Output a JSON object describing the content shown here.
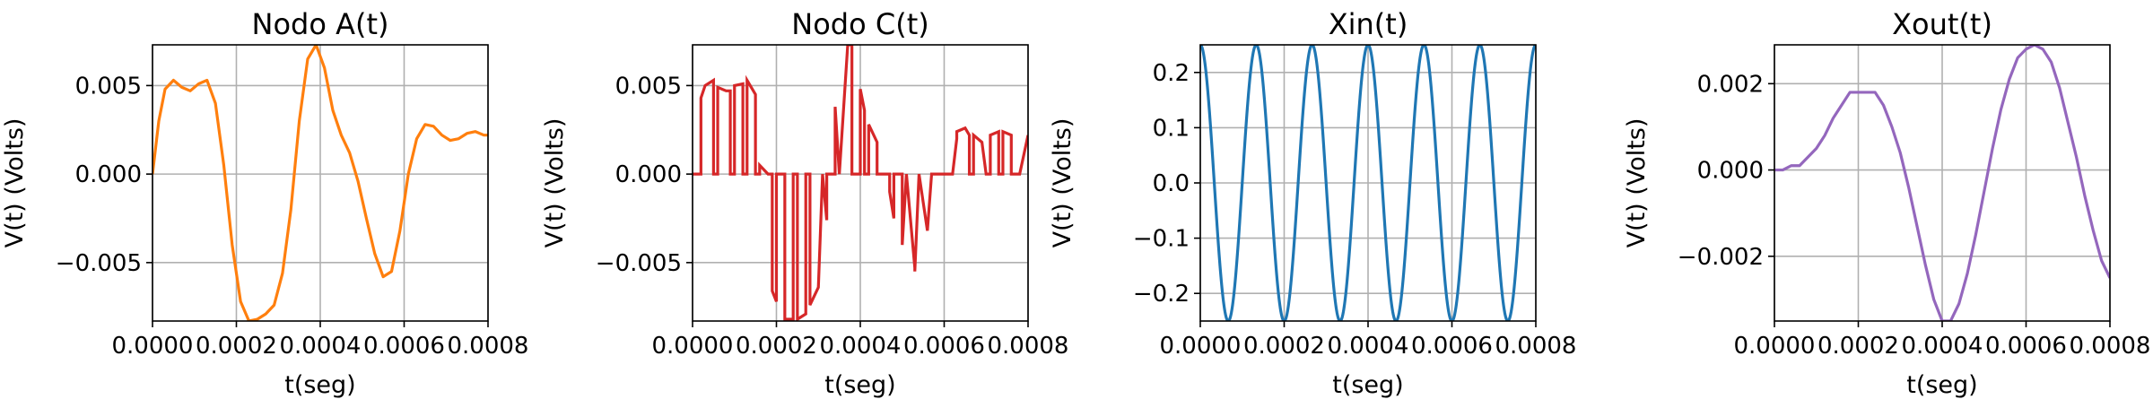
{
  "chart_data": [
    {
      "type": "line",
      "title": "Nodo A(t)",
      "xlabel": "t(seg)",
      "ylabel": "V(t) (Volts)",
      "xlim": [
        0,
        0.0008
      ],
      "ylim": [
        -0.0083,
        0.0073
      ],
      "xticks": [
        "0.0000",
        "0.0002",
        "0.0004",
        "0.0006",
        "0.0008"
      ],
      "yticks": [
        "0.005",
        "0.000",
        "−0.005"
      ],
      "ytick_values": [
        0.005,
        0,
        -0.005
      ],
      "xtick_values": [
        0,
        0.0002,
        0.0004,
        0.0006,
        0.0008
      ],
      "grid": true,
      "color": "#ff7f0e",
      "series": [
        {
          "x": [
            0,
            1.5e-05,
            3e-05,
            5e-05,
            7e-05,
            9e-05,
            0.00011,
            0.00013,
            0.00015,
            0.00017,
            0.00019,
            0.00021,
            0.00023,
            0.00025,
            0.00027,
            0.00029,
            0.00031,
            0.00033,
            0.00035,
            0.00037,
            0.00039,
            0.00041,
            0.00043,
            0.00045,
            0.00047,
            0.00049,
            0.00051,
            0.00053,
            0.00055,
            0.00057,
            0.00059,
            0.00061,
            0.00063,
            0.00065,
            0.00067,
            0.00069,
            0.00071,
            0.00073,
            0.00075,
            0.00077,
            0.00079,
            0.0008
          ],
          "y": [
            0.0,
            0.003,
            0.0048,
            0.0053,
            0.0049,
            0.0047,
            0.0051,
            0.0053,
            0.004,
            0.0005,
            -0.004,
            -0.0072,
            -0.0083,
            -0.0082,
            -0.0079,
            -0.0074,
            -0.0056,
            -0.002,
            0.003,
            0.0065,
            0.0073,
            0.006,
            0.0036,
            0.0022,
            0.0012,
            -0.0004,
            -0.0025,
            -0.0045,
            -0.0058,
            -0.0055,
            -0.0032,
            0.0,
            0.002,
            0.0028,
            0.0027,
            0.0022,
            0.0019,
            0.002,
            0.0023,
            0.0024,
            0.0022,
            0.0022
          ]
        }
      ]
    },
    {
      "type": "line",
      "title": "Nodo C(t)",
      "xlabel": "t(seg)",
      "ylabel": "V(t) (Volts)",
      "xlim": [
        0,
        0.0008
      ],
      "ylim": [
        -0.0083,
        0.0073
      ],
      "xticks": [
        "0.0000",
        "0.0002",
        "0.0004",
        "0.0006",
        "0.0008"
      ],
      "yticks": [
        "0.005",
        "0.000",
        "−0.005"
      ],
      "ytick_values": [
        0.005,
        0,
        -0.005
      ],
      "xtick_values": [
        0,
        0.0002,
        0.0004,
        0.0006,
        0.0008
      ],
      "grid": true,
      "color": "#d62728",
      "series": [
        {
          "x": [
            0,
            2e-05,
            2e-05,
            3e-05,
            5e-05,
            5e-05,
            6e-05,
            6e-05,
            8e-05,
            9e-05,
            9e-05,
            0.0001,
            0.0001,
            0.00012,
            0.00012,
            0.00013,
            0.00013,
            0.00015,
            0.00015,
            0.00016,
            0.00016,
            0.00018,
            0.00019,
            0.00019,
            0.0002,
            0.0002,
            0.00021,
            0.00022,
            0.00022,
            0.00024,
            0.00024,
            0.00025,
            0.00025,
            0.00027,
            0.00027,
            0.00028,
            0.00028,
            0.0003,
            0.00031,
            0.00031,
            0.00032,
            0.00032,
            0.00034,
            0.00034,
            0.00035,
            0.00035,
            0.00037,
            0.00038,
            0.00038,
            0.0004,
            0.0004,
            0.00041,
            0.00041,
            0.00042,
            0.00042,
            0.00044,
            0.00044,
            0.00045,
            0.00047,
            0.00047,
            0.00048,
            0.00048,
            0.0005,
            0.0005,
            0.00051,
            0.00051,
            0.00053,
            0.00053,
            0.00054,
            0.00054,
            0.00056,
            0.00057,
            0.00057,
            0.00059,
            0.00059,
            0.0006,
            0.0006,
            0.00062,
            0.00063,
            0.00063,
            0.00065,
            0.00066,
            0.00066,
            0.00067,
            0.00067,
            0.00069,
            0.0007,
            0.00071,
            0.00071,
            0.00073,
            0.00073,
            0.00074,
            0.00074,
            0.00076,
            0.00076,
            0.00078,
            0.0008
          ],
          "y": [
            0,
            0,
            0.0043,
            0.005,
            0.0053,
            0,
            0,
            0.0049,
            0.0047,
            0.0047,
            0,
            0,
            0.005,
            0.0051,
            0,
            0,
            0.0053,
            0.0045,
            0,
            0,
            0.0005,
            0,
            0,
            -0.0066,
            -0.0072,
            0,
            0,
            0,
            -0.0082,
            -0.0082,
            0,
            0,
            -0.0082,
            -0.0079,
            0,
            0,
            -0.0074,
            -0.0064,
            0,
            0,
            -0.0026,
            0,
            0,
            0.0038,
            0,
            0,
            0.0073,
            0.0073,
            0,
            0,
            0.0048,
            0.0036,
            0,
            0,
            0.0028,
            0.0018,
            0,
            0,
            0,
            -0.001,
            -0.0025,
            0,
            0,
            -0.004,
            0,
            0,
            -0.0053,
            -0.0055,
            0,
            0,
            -0.0032,
            0,
            0,
            0,
            0,
            0,
            0,
            0,
            0.002,
            0.0024,
            0.0026,
            0.0022,
            0,
            0,
            0.0022,
            0.0018,
            0,
            0,
            0.0022,
            0.0024,
            0,
            0,
            0.0024,
            0.0022,
            0,
            0,
            0.0022
          ]
        }
      ]
    },
    {
      "type": "line",
      "title": "Xin(t)",
      "xlabel": "t(seg)",
      "ylabel": "V(t) (Volts)",
      "xlim": [
        0,
        0.0008
      ],
      "ylim": [
        -0.25,
        0.25
      ],
      "xticks": [
        "0.0000",
        "0.0002",
        "0.0004",
        "0.0006",
        "0.0008"
      ],
      "yticks": [
        "0.2",
        "0.1",
        "0.0",
        "−0.1",
        "−0.2"
      ],
      "ytick_values": [
        0.2,
        0.1,
        0,
        -0.1,
        -0.2
      ],
      "xtick_values": [
        0,
        0.0002,
        0.0004,
        0.0006,
        0.0008
      ],
      "grid": true,
      "color": "#1f77b4",
      "series": [
        {
          "amplitude": 0.25,
          "frequency_hz": 7500,
          "waveform": "cosine"
        }
      ]
    },
    {
      "type": "line",
      "title": "Xout(t)",
      "xlabel": "t(seg)",
      "ylabel": "V(t) (Volts)",
      "xlim": [
        0,
        0.0008
      ],
      "ylim": [
        -0.0035,
        0.0029
      ],
      "xticks": [
        "0.0000",
        "0.0002",
        "0.0004",
        "0.0006",
        "0.0008"
      ],
      "yticks": [
        "0.002",
        "0.000",
        "−0.002"
      ],
      "ytick_values": [
        0.002,
        0,
        -0.002
      ],
      "xtick_values": [
        0,
        0.0002,
        0.0004,
        0.0006,
        0.0008
      ],
      "grid": true,
      "color": "#9467bd",
      "series": [
        {
          "x": [
            0,
            2e-05,
            4e-05,
            6e-05,
            8e-05,
            0.0001,
            0.00012,
            0.00014,
            0.00016,
            0.00018,
            0.0002,
            0.00022,
            0.00024,
            0.00026,
            0.00028,
            0.0003,
            0.00032,
            0.00034,
            0.00036,
            0.00038,
            0.0004,
            0.00042,
            0.00044,
            0.00046,
            0.00048,
            0.0005,
            0.00052,
            0.00054,
            0.00056,
            0.00058,
            0.0006,
            0.00062,
            0.00064,
            0.00066,
            0.00068,
            0.0007,
            0.00072,
            0.00074,
            0.00076,
            0.00078,
            0.0008
          ],
          "y": [
            0,
            0,
            0.0001,
            0.0001,
            0.0003,
            0.0005,
            0.0008,
            0.0012,
            0.0015,
            0.0018,
            0.0018,
            0.0018,
            0.0018,
            0.0015,
            0.001,
            0.0004,
            -0.0004,
            -0.0013,
            -0.0022,
            -0.003,
            -0.0035,
            -0.0035,
            -0.0031,
            -0.0024,
            -0.0015,
            -0.0005,
            0.0005,
            0.0014,
            0.0021,
            0.0026,
            0.0028,
            0.0029,
            0.0028,
            0.0025,
            0.0019,
            0.0011,
            0.0003,
            -0.0006,
            -0.0014,
            -0.0021,
            -0.0025
          ]
        }
      ]
    }
  ]
}
